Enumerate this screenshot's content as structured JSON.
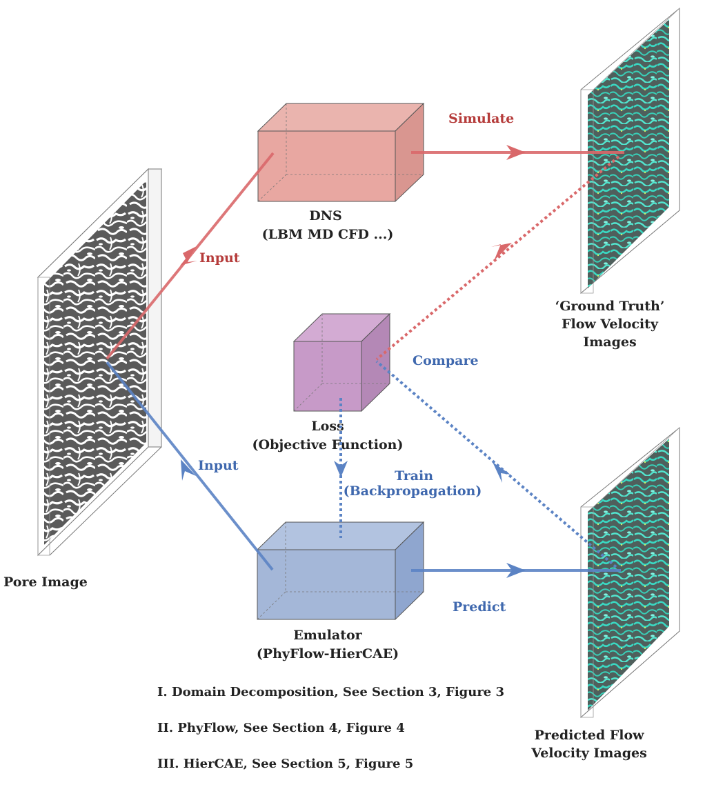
{
  "colors": {
    "red_path": "#d9686a",
    "red_text": "#b53b3a",
    "blue_path": "#5b83c4",
    "blue_text": "#3f68ae",
    "dns_face": "#e8a7a1",
    "loss_face": "#c79ac8",
    "emulator_face": "#a4b7d8",
    "pore_dark": "#555555",
    "flow_cyan": "#3ad8c2",
    "text_dark": "#222222"
  },
  "pore_image": {
    "label": "Pore Image"
  },
  "dns": {
    "title": "DNS",
    "subtitle": "(LBM MD CFD ...)"
  },
  "loss": {
    "title": "Loss",
    "subtitle": "(Objective Function)"
  },
  "emulator": {
    "title": "Emulator",
    "subtitle": "(PhyFlow-HierCAE)"
  },
  "ground_truth": {
    "line1": "‘Ground Truth’",
    "line2": "Flow Velocity",
    "line3": "Images"
  },
  "predicted": {
    "line1": "Predicted Flow",
    "line2": "Velocity Images"
  },
  "edges": {
    "input_top": "Input",
    "input_bottom": "Input",
    "simulate": "Simulate",
    "compare": "Compare",
    "train": "Train",
    "train_sub": "(Backpropagation)",
    "predict": "Predict"
  },
  "notes": [
    "I. Domain Decomposition, See Section 3, Figure 3",
    "II. PhyFlow, See Section 4, Figure 4",
    "III. HierCAE, See Section 5, Figure 5"
  ]
}
